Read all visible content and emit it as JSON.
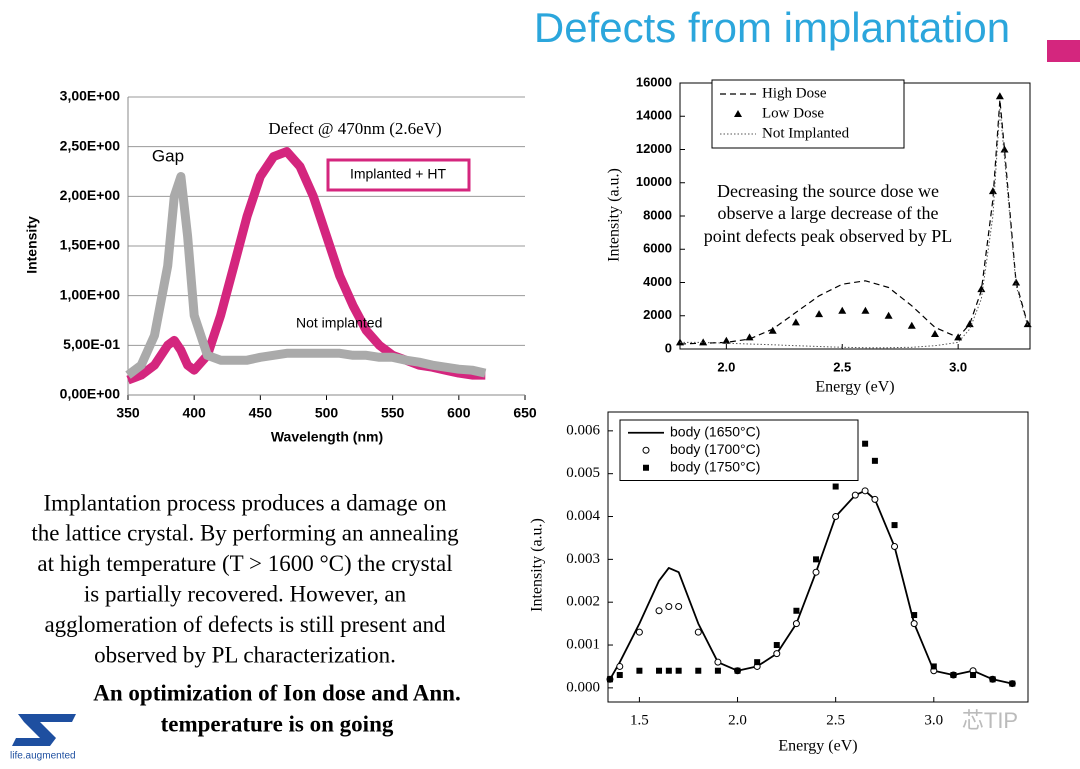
{
  "slide": {
    "title": "Defects from implantation",
    "body": [
      "Implantation process produces a damage on",
      "the lattice crystal. By performing an annealing",
      "at high temperature (T > 1600 °C) the crystal",
      "is partially recovered. However, an",
      "agglomeration of defects is still present and",
      "observed by PL characterization."
    ],
    "conclusion": [
      "An optimization of Ion dose and Ann.",
      "temperature is on going"
    ],
    "logo_tagline": "life.augmented",
    "watermark": "芯TIP"
  },
  "chart_data": [
    {
      "type": "line",
      "x_label": "Wavelength (nm)",
      "y_label": "Intensity",
      "annotations": [
        "Gap",
        "Defect @ 470nm (2.6eV)"
      ],
      "x": [
        350,
        360,
        370,
        380,
        385,
        390,
        395,
        400,
        410,
        420,
        430,
        440,
        450,
        460,
        470,
        480,
        490,
        500,
        510,
        520,
        530,
        540,
        550,
        560,
        570,
        580,
        590,
        600,
        610,
        620
      ],
      "series": [
        {
          "name": "Implanted + HT",
          "color": "#d4267e",
          "marker": "none",
          "dash": "solid",
          "line_width": 9,
          "values": [
            0.15,
            0.2,
            0.3,
            0.5,
            0.55,
            0.45,
            0.3,
            0.25,
            0.4,
            0.8,
            1.3,
            1.8,
            2.2,
            2.4,
            2.45,
            2.3,
            2.0,
            1.6,
            1.2,
            0.9,
            0.65,
            0.5,
            0.4,
            0.35,
            0.3,
            0.28,
            0.25,
            0.22,
            0.2,
            0.2
          ]
        },
        {
          "name": "Not implanted",
          "color": "#aaaaaa",
          "marker": "none",
          "dash": "solid",
          "line_width": 9,
          "values": [
            0.2,
            0.3,
            0.6,
            1.3,
            2.0,
            2.2,
            1.6,
            0.8,
            0.4,
            0.35,
            0.35,
            0.35,
            0.38,
            0.4,
            0.42,
            0.42,
            0.42,
            0.42,
            0.42,
            0.4,
            0.4,
            0.38,
            0.38,
            0.35,
            0.33,
            0.3,
            0.28,
            0.26,
            0.25,
            0.22
          ]
        }
      ],
      "xlim": [
        350,
        650
      ],
      "xticks": [
        350,
        400,
        450,
        500,
        550,
        600,
        650
      ],
      "ylim": [
        0,
        3
      ],
      "yticks": [
        {
          "value": 0,
          "label": "0,00E+00"
        },
        {
          "value": 0.5,
          "label": "5,00E-01"
        },
        {
          "value": 1,
          "label": "1,00E+00"
        },
        {
          "value": 1.5,
          "label": "1,50E+00"
        },
        {
          "value": 2,
          "label": "2,00E+00"
        },
        {
          "value": 2.5,
          "label": "2,50E+00"
        },
        {
          "value": 3,
          "label": "3,00E+00"
        }
      ],
      "grid": true,
      "frame": false,
      "legend": false
    },
    {
      "type": "line",
      "x_label": "Energy (eV)",
      "y_label": "Intensity (a.u.)",
      "annotations": [
        "Decreasing the source dose we",
        "observe a large decrease of the",
        "point defects peak observed by PL"
      ],
      "x": [
        1.8,
        1.9,
        2.0,
        2.1,
        2.2,
        2.3,
        2.4,
        2.5,
        2.6,
        2.7,
        2.8,
        2.9,
        3.0,
        3.05,
        3.1,
        3.15,
        3.18,
        3.2,
        3.25,
        3.3
      ],
      "series": [
        {
          "name": "High Dose",
          "color": "#000000",
          "marker": "none",
          "dash": "dashed",
          "line_width": 1.2,
          "values": [
            300,
            350,
            400,
            600,
            1200,
            2200,
            3200,
            3900,
            4100,
            3700,
            2600,
            1300,
            700,
            1500,
            3500,
            9000,
            15000,
            12000,
            4000,
            1500
          ]
        },
        {
          "name": "Low Dose",
          "color": "#000000",
          "marker": "triangle",
          "dash": "solid",
          "line_width": 1,
          "values": [
            400,
            400,
            500,
            700,
            1100,
            1600,
            2100,
            2300,
            2300,
            2000,
            1400,
            900,
            700,
            1500,
            3600,
            9500,
            15200,
            12000,
            4000,
            1500
          ]
        },
        {
          "name": "Not Implanted",
          "color": "#555555",
          "marker": "none",
          "dash": "dotted",
          "line_width": 1,
          "values": [
            400,
            400,
            350,
            300,
            250,
            200,
            150,
            100,
            80,
            80,
            100,
            200,
            400,
            1200,
            3000,
            8000,
            14500,
            11500,
            3800,
            1400
          ]
        }
      ],
      "xlim": [
        1.8,
        3.31
      ],
      "xticks": [
        {
          "value": 2,
          "label": "2.0"
        },
        {
          "value": 2.5,
          "label": "2.5"
        },
        {
          "value": 3,
          "label": "3.0"
        }
      ],
      "ylim": [
        0,
        16000
      ],
      "yticks": [
        0,
        2000,
        4000,
        6000,
        8000,
        10000,
        12000,
        14000,
        16000
      ],
      "grid": false,
      "frame": true,
      "legend": true
    },
    {
      "type": "line",
      "x_label": "Energy (eV)",
      "y_label": "Intensity (a.u.)",
      "annotations": [],
      "x": [
        1.35,
        1.4,
        1.5,
        1.6,
        1.65,
        1.7,
        1.8,
        1.9,
        2.0,
        2.1,
        2.2,
        2.3,
        2.4,
        2.5,
        2.6,
        2.65,
        2.7,
        2.8,
        2.9,
        3.0,
        3.1,
        3.2,
        3.3,
        3.4
      ],
      "series": [
        {
          "name": "body (1650°C)",
          "color": "#000000",
          "marker": "none",
          "dash": "solid",
          "line_width": 1.8,
          "values": [
            0.0002,
            0.0006,
            0.0015,
            0.0025,
            0.0028,
            0.0027,
            0.0015,
            0.0006,
            0.0004,
            0.0005,
            0.0008,
            0.0015,
            0.0027,
            0.004,
            0.0045,
            0.0046,
            0.0044,
            0.0033,
            0.0015,
            0.0004,
            0.0003,
            0.0004,
            0.0002,
            0.0001
          ]
        },
        {
          "name": "body (1700°C)",
          "color": "#000000",
          "marker": "circle",
          "dash": "solid",
          "line_width": 1,
          "values": [
            0.0002,
            0.0005,
            0.0013,
            0.0018,
            0.0019,
            0.0019,
            0.0013,
            0.0006,
            0.0004,
            0.0005,
            0.0008,
            0.0015,
            0.0027,
            0.004,
            0.0045,
            0.0046,
            0.0044,
            0.0033,
            0.0015,
            0.0004,
            0.0003,
            0.0004,
            0.0002,
            0.0001
          ]
        },
        {
          "name": "body (1750°C)",
          "color": "#000000",
          "marker": "square",
          "dash": "solid",
          "line_width": 1,
          "values": [
            0.0002,
            0.0003,
            0.0004,
            0.0004,
            0.0004,
            0.0004,
            0.0004,
            0.0004,
            0.0004,
            0.0006,
            0.001,
            0.0018,
            0.003,
            0.0047,
            0.0056,
            0.0057,
            0.0053,
            0.0038,
            0.0017,
            0.0005,
            0.0003,
            0.0003,
            0.0002,
            0.0001
          ]
        }
      ],
      "xlim": [
        1.34,
        3.48
      ],
      "xticks": [
        {
          "value": 1.5,
          "label": "1.5"
        },
        {
          "value": 2,
          "label": "2.0"
        },
        {
          "value": 2.5,
          "label": "2.5"
        },
        {
          "value": 3,
          "label": "3.0"
        }
      ],
      "ylim": [
        -0.00033,
        0.00644
      ],
      "yticks": [
        {
          "value": 0,
          "label": "0.000"
        },
        {
          "value": 0.001,
          "label": "0.001"
        },
        {
          "value": 0.002,
          "label": "0.002"
        },
        {
          "value": 0.003,
          "label": "0.003"
        },
        {
          "value": 0.004,
          "label": "0.004"
        },
        {
          "value": 0.005,
          "label": "0.005"
        },
        {
          "value": 0.006,
          "label": "0.006"
        }
      ],
      "grid": false,
      "frame": true,
      "legend": true
    }
  ]
}
